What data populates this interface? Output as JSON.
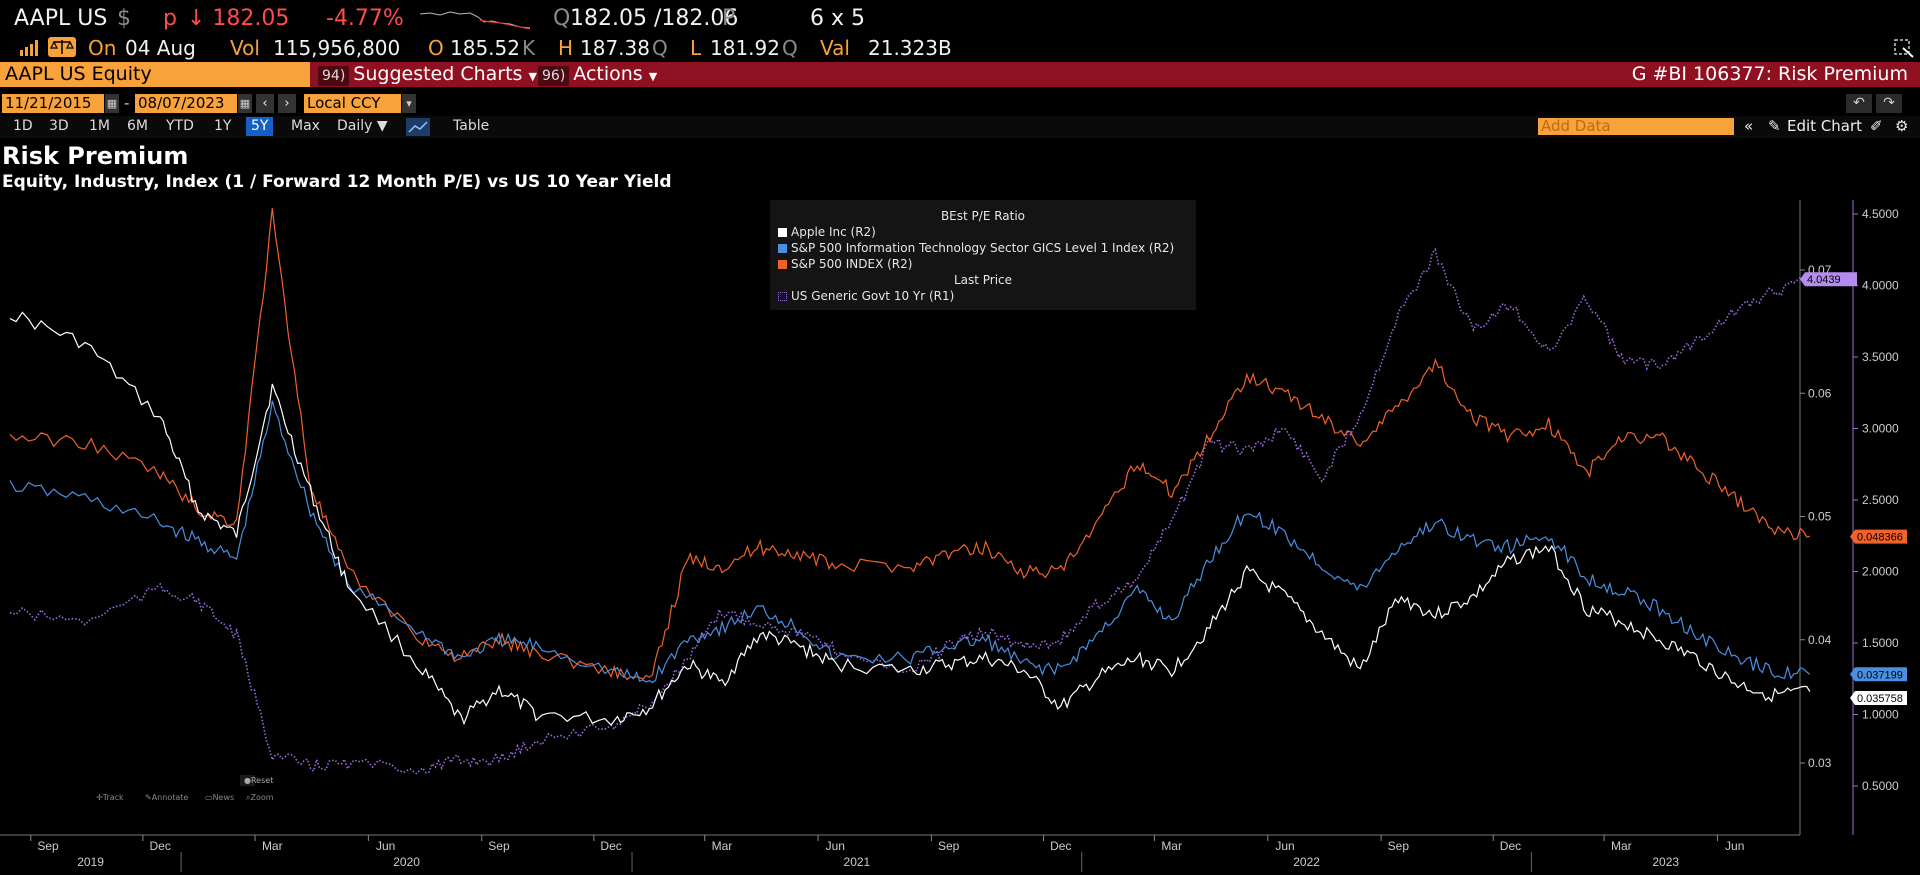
{
  "quote": {
    "ticker": "AAPL US",
    "currency_sym": "$",
    "p_flag": "p",
    "last_price": "↓ 182.05",
    "change": "-4.77%",
    "bid_ask_prefix": "Q",
    "bid_ask": "182.05 /182.06",
    "bid_ask_suffix": "P",
    "size": "6 x 5",
    "on_label": "On",
    "date": "04 Aug",
    "vol_label": "Vol",
    "vol": "115,956,800",
    "open_label": "O",
    "open": "185.52",
    "open_suffix": "K",
    "high_label": "H",
    "high": "187.38",
    "high_suffix": "Q",
    "low_label": "L",
    "low": "181.92",
    "low_suffix": "Q",
    "val_label": "Val",
    "val": "21.323B"
  },
  "toolbar": {
    "security": "AAPL US Equity",
    "suggested_code": "94)",
    "suggested_label": "Suggested Charts",
    "actions_code": "96)",
    "actions_label": "Actions",
    "right_title": "G #BI 106377: Risk Premium"
  },
  "dates": {
    "start": "11/21/2015",
    "separator": "-",
    "end": "08/07/2023",
    "currency": "Local CCY"
  },
  "periods": [
    "1D",
    "3D",
    "1M",
    "6M",
    "YTD",
    "1Y",
    "5Y",
    "Max"
  ],
  "selected_period": "5Y",
  "frequency": "Daily ▼",
  "table_label": "Table",
  "add_data_placeholder": "Add Data",
  "edit_chart_label": "Edit Chart",
  "mini_toolbar": {
    "reset": "Reset",
    "track": "Track",
    "annotate": "Annotate",
    "news": "News",
    "zoom": "Zoom"
  },
  "colors": {
    "apple": "#ffffff",
    "infotech": "#4a8fe0",
    "sp500": "#f0622a",
    "treasury": "#9b6be0",
    "amber": "#f7a23b",
    "bar_red": "#8f1020"
  },
  "chart_data": {
    "type": "line",
    "title": "Risk Premium",
    "subtitle": "Equity, Industry, Index (1 / Forward 12 Month P/E) vs US 10 Year Yield",
    "legend": {
      "group1": "BEst P/E Ratio",
      "group2": "Last Price",
      "placement": "top-center"
    },
    "x_range": [
      "2019-08-07",
      "2023-08-07"
    ],
    "x_month_ticks": [
      "Sep",
      "Dec",
      "Mar",
      "Jun",
      "Sep",
      "Dec",
      "Mar",
      "Jun",
      "Sep",
      "Dec",
      "Mar",
      "Jun",
      "Sep",
      "Dec",
      "Mar",
      "Jun"
    ],
    "x_year_labels": [
      "2019",
      "2020",
      "2021",
      "2022",
      "2023"
    ],
    "axis_r2": {
      "ticks": [
        "0.07",
        "0.06",
        "0.05",
        "0.04",
        "0.03"
      ],
      "range": [
        0.025,
        0.0765
      ]
    },
    "axis_r1": {
      "ticks": [
        "4.5000",
        "4.0000",
        "3.5000",
        "3.0000",
        "2.5000",
        "2.0000",
        "1.5000",
        "1.0000",
        "0.5000"
      ],
      "range": [
        0.2,
        4.6
      ]
    },
    "series": [
      {
        "name": "Apple Inc  (R2)",
        "axis": "R2",
        "color": "#ffffff",
        "last_label": "0.035758",
        "points": [
          [
            "2019-08",
            0.0665
          ],
          [
            "2019-10",
            0.064
          ],
          [
            "2019-12",
            0.058
          ],
          [
            "2020-01",
            0.0505
          ],
          [
            "2020-02",
            0.0485
          ],
          [
            "2020-03",
            0.0605
          ],
          [
            "2020-04",
            0.052
          ],
          [
            "2020-05",
            0.0445
          ],
          [
            "2020-07",
            0.0375
          ],
          [
            "2020-08",
            0.0335
          ],
          [
            "2020-09",
            0.036
          ],
          [
            "2020-10",
            0.034
          ],
          [
            "2020-12",
            0.0335
          ],
          [
            "2021-01",
            0.0345
          ],
          [
            "2021-02",
            0.038
          ],
          [
            "2021-03",
            0.0365
          ],
          [
            "2021-04",
            0.0405
          ],
          [
            "2021-05",
            0.0395
          ],
          [
            "2021-06",
            0.038
          ],
          [
            "2021-08",
            0.0375
          ],
          [
            "2021-09",
            0.038
          ],
          [
            "2021-10",
            0.0385
          ],
          [
            "2021-11",
            0.0375
          ],
          [
            "2021-12",
            0.0345
          ],
          [
            "2022-01",
            0.037
          ],
          [
            "2022-02",
            0.0385
          ],
          [
            "2022-03",
            0.0375
          ],
          [
            "2022-04",
            0.041
          ],
          [
            "2022-05",
            0.0455
          ],
          [
            "2022-06",
            0.0435
          ],
          [
            "2022-07",
            0.0405
          ],
          [
            "2022-08",
            0.0375
          ],
          [
            "2022-09",
            0.0435
          ],
          [
            "2022-10",
            0.042
          ],
          [
            "2022-11",
            0.0435
          ],
          [
            "2022-12",
            0.0465
          ],
          [
            "2023-01",
            0.0475
          ],
          [
            "2023-02",
            0.0425
          ],
          [
            "2023-03",
            0.0415
          ],
          [
            "2023-04",
            0.04
          ],
          [
            "2023-05",
            0.0385
          ],
          [
            "2023-06",
            0.0365
          ],
          [
            "2023-07",
            0.0355
          ],
          [
            "2023-08",
            0.0358
          ]
        ]
      },
      {
        "name": "S&P 500 Information Technology Sector GICS Level 1 Index  (R2)",
        "axis": "R2",
        "color": "#4a8fe0",
        "last_label": "0.037199",
        "points": [
          [
            "2019-08",
            0.0525
          ],
          [
            "2019-10",
            0.0515
          ],
          [
            "2019-12",
            0.0495
          ],
          [
            "2020-01",
            0.048
          ],
          [
            "2020-02",
            0.0465
          ],
          [
            "2020-03",
            0.059
          ],
          [
            "2020-04",
            0.0505
          ],
          [
            "2020-05",
            0.0445
          ],
          [
            "2020-07",
            0.0405
          ],
          [
            "2020-08",
            0.0385
          ],
          [
            "2020-09",
            0.04
          ],
          [
            "2020-10",
            0.0395
          ],
          [
            "2020-12",
            0.0375
          ],
          [
            "2021-01",
            0.0365
          ],
          [
            "2021-02",
            0.04
          ],
          [
            "2021-03",
            0.041
          ],
          [
            "2021-04",
            0.0425
          ],
          [
            "2021-05",
            0.041
          ],
          [
            "2021-06",
            0.0385
          ],
          [
            "2021-08",
            0.0385
          ],
          [
            "2021-09",
            0.0395
          ],
          [
            "2021-10",
            0.04
          ],
          [
            "2021-11",
            0.038
          ],
          [
            "2021-12",
            0.0375
          ],
          [
            "2022-01",
            0.0405
          ],
          [
            "2022-02",
            0.044
          ],
          [
            "2022-03",
            0.0415
          ],
          [
            "2022-04",
            0.0465
          ],
          [
            "2022-05",
            0.0505
          ],
          [
            "2022-06",
            0.0485
          ],
          [
            "2022-07",
            0.046
          ],
          [
            "2022-08",
            0.044
          ],
          [
            "2022-09",
            0.0475
          ],
          [
            "2022-10",
            0.0495
          ],
          [
            "2022-11",
            0.048
          ],
          [
            "2022-12",
            0.0475
          ],
          [
            "2023-01",
            0.0485
          ],
          [
            "2023-02",
            0.045
          ],
          [
            "2023-03",
            0.044
          ],
          [
            "2023-04",
            0.0425
          ],
          [
            "2023-05",
            0.0405
          ],
          [
            "2023-06",
            0.0385
          ],
          [
            "2023-07",
            0.0375
          ],
          [
            "2023-08",
            0.0372
          ]
        ]
      },
      {
        "name": "S&P 500 INDEX  (R2)",
        "axis": "R2",
        "color": "#f0622a",
        "last_label": "0.048366",
        "points": [
          [
            "2019-08",
            0.0565
          ],
          [
            "2019-10",
            0.056
          ],
          [
            "2019-12",
            0.0535
          ],
          [
            "2020-01",
            0.0505
          ],
          [
            "2020-02",
            0.0495
          ],
          [
            "2020-03",
            0.0745
          ],
          [
            "2020-04",
            0.0525
          ],
          [
            "2020-05",
            0.0455
          ],
          [
            "2020-07",
            0.04
          ],
          [
            "2020-08",
            0.0385
          ],
          [
            "2020-09",
            0.04
          ],
          [
            "2020-10",
            0.039
          ],
          [
            "2020-12",
            0.0375
          ],
          [
            "2021-01",
            0.0365
          ],
          [
            "2021-02",
            0.0465
          ],
          [
            "2021-03",
            0.046
          ],
          [
            "2021-04",
            0.0475
          ],
          [
            "2021-05",
            0.047
          ],
          [
            "2021-06",
            0.046
          ],
          [
            "2021-08",
            0.046
          ],
          [
            "2021-09",
            0.047
          ],
          [
            "2021-10",
            0.0475
          ],
          [
            "2021-11",
            0.0455
          ],
          [
            "2021-12",
            0.0455
          ],
          [
            "2022-01",
            0.0495
          ],
          [
            "2022-02",
            0.0545
          ],
          [
            "2022-03",
            0.052
          ],
          [
            "2022-04",
            0.0565
          ],
          [
            "2022-05",
            0.0615
          ],
          [
            "2022-06",
            0.06
          ],
          [
            "2022-07",
            0.058
          ],
          [
            "2022-08",
            0.056
          ],
          [
            "2022-09",
            0.059
          ],
          [
            "2022-10",
            0.0625
          ],
          [
            "2022-11",
            0.058
          ],
          [
            "2022-12",
            0.0565
          ],
          [
            "2023-01",
            0.0575
          ],
          [
            "2023-02",
            0.0535
          ],
          [
            "2023-03",
            0.0565
          ],
          [
            "2023-04",
            0.0565
          ],
          [
            "2023-05",
            0.054
          ],
          [
            "2023-06",
            0.0515
          ],
          [
            "2023-07",
            0.049
          ],
          [
            "2023-08",
            0.0484
          ]
        ]
      },
      {
        "name": "US Generic Govt 10 Yr  (R1)",
        "axis": "R1",
        "color": "#9b6be0",
        "dashed": true,
        "last_label": "4.0439",
        "points": [
          [
            "2019-08",
            1.72
          ],
          [
            "2019-10",
            1.65
          ],
          [
            "2019-12",
            1.88
          ],
          [
            "2020-01",
            1.79
          ],
          [
            "2020-02",
            1.55
          ],
          [
            "2020-03",
            0.72
          ],
          [
            "2020-04",
            0.64
          ],
          [
            "2020-05",
            0.66
          ],
          [
            "2020-07",
            0.62
          ],
          [
            "2020-08",
            0.68
          ],
          [
            "2020-09",
            0.68
          ],
          [
            "2020-10",
            0.82
          ],
          [
            "2020-12",
            0.92
          ],
          [
            "2021-01",
            1.07
          ],
          [
            "2021-02",
            1.38
          ],
          [
            "2021-03",
            1.72
          ],
          [
            "2021-04",
            1.64
          ],
          [
            "2021-05",
            1.58
          ],
          [
            "2021-06",
            1.45
          ],
          [
            "2021-08",
            1.3
          ],
          [
            "2021-09",
            1.48
          ],
          [
            "2021-10",
            1.58
          ],
          [
            "2021-11",
            1.48
          ],
          [
            "2021-12",
            1.52
          ],
          [
            "2022-01",
            1.78
          ],
          [
            "2022-02",
            1.95
          ],
          [
            "2022-03",
            2.35
          ],
          [
            "2022-04",
            2.9
          ],
          [
            "2022-05",
            2.85
          ],
          [
            "2022-06",
            3.0
          ],
          [
            "2022-07",
            2.65
          ],
          [
            "2022-08",
            3.1
          ],
          [
            "2022-09",
            3.8
          ],
          [
            "2022-10",
            4.22
          ],
          [
            "2022-11",
            3.68
          ],
          [
            "2022-12",
            3.88
          ],
          [
            "2023-01",
            3.52
          ],
          [
            "2023-02",
            3.92
          ],
          [
            "2023-03",
            3.48
          ],
          [
            "2023-04",
            3.45
          ],
          [
            "2023-05",
            3.62
          ],
          [
            "2023-06",
            3.82
          ],
          [
            "2023-07",
            3.95
          ],
          [
            "2023-08",
            4.04
          ]
        ]
      }
    ]
  }
}
